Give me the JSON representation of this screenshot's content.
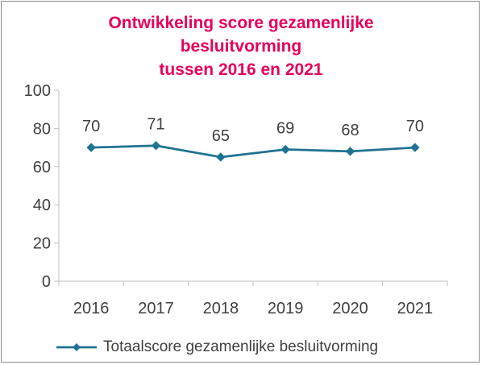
{
  "chart_data": {
    "type": "line",
    "title": "Ontwikkeling score gezamenlijke\nbesluitvorming\ntussen 2016 en 2021",
    "categories": [
      "2016",
      "2017",
      "2018",
      "2019",
      "2020",
      "2021"
    ],
    "series": [
      {
        "name": "Totaalscore gezamenlijke besluitvorming",
        "values": [
          70,
          71,
          65,
          69,
          68,
          70
        ],
        "color": "#1f7391",
        "marker": "diamond"
      }
    ],
    "ylim": [
      0,
      100
    ],
    "yticks": [
      "0",
      "20",
      "40",
      "60",
      "80",
      "100"
    ],
    "xlabel": "",
    "ylabel": "",
    "grid": false,
    "data_labels": true,
    "legend_position": "bottom",
    "title_color": "#e5005a",
    "text_color": "#404040",
    "axis_color": "#bfbfbf"
  }
}
